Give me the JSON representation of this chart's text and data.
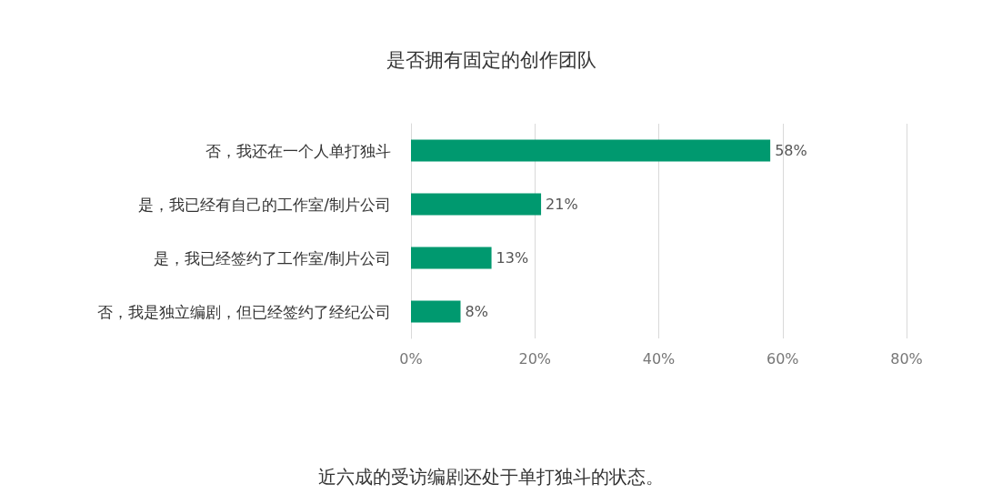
{
  "chart_data": {
    "type": "bar",
    "orientation": "horizontal",
    "title": "是否拥有固定的创作团队",
    "categories": [
      "否，我还在一个人单打独斗",
      "是，我已经有自己的工作室/制片公司",
      "是，我已经签约了工作室/制片公司",
      "否，我是独立编剧，但已经签约了经纪公司"
    ],
    "values": [
      58,
      21,
      13,
      8
    ],
    "value_labels": [
      "58%",
      "21%",
      "13%",
      "8%"
    ],
    "color": "#00996f",
    "xlim": [
      0,
      80
    ],
    "xticks": [
      {
        "value": 0,
        "label": "0%"
      },
      {
        "value": 20,
        "label": "20%"
      },
      {
        "value": 40,
        "label": "40%"
      },
      {
        "value": 60,
        "label": "60%"
      },
      {
        "value": 80,
        "label": "80%"
      }
    ],
    "grid": "x",
    "annotations": [
      "近六成的受访编剧还处于单打独斗的状态。"
    ]
  }
}
